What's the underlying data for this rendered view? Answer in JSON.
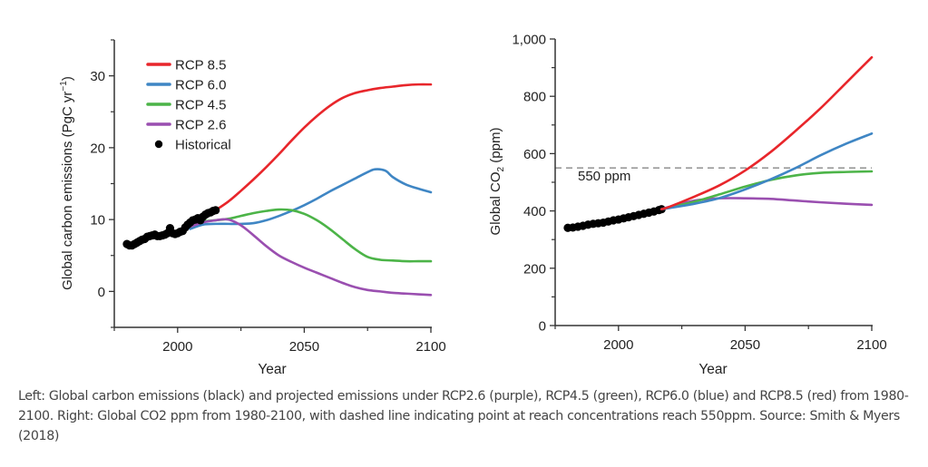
{
  "caption": "Left: Global carbon emissions (black) and projected emissions under RCP2.6 (purple), RCP4.5 (green), RCP6.0 (blue) and RCP8.5 (red) from 1980-2100. Right: Global CO2 ppm from 1980-2100, with dashed line indicating point at reach concentrations reach 550ppm. Source: Smith & Myers (2018)",
  "colors": {
    "rcp85": "#e8262b",
    "rcp60": "#3f86c4",
    "rcp45": "#4cb448",
    "rcp26": "#9a4fb0",
    "historical": "#000000",
    "reference": "#888888"
  },
  "chart_data": [
    {
      "type": "line",
      "title": "",
      "xlabel": "Year",
      "ylabel": "Global carbon emissions (PgC yr⁻¹)",
      "xlim": [
        1975,
        2100
      ],
      "ylim": [
        -5,
        35
      ],
      "xticks": [
        2000,
        2050,
        2100
      ],
      "xminor": [
        1975,
        2025,
        2075
      ],
      "yticks": [
        0,
        10,
        20,
        30
      ],
      "yminor": [
        -5,
        5,
        15,
        25,
        35
      ],
      "legend": {
        "position": "top-left",
        "entries": [
          "RCP 8.5",
          "RCP 6.0",
          "RCP 4.5",
          "RCP 2.6",
          "Historical"
        ]
      },
      "historical": {
        "name": "Historical",
        "x": [
          1980,
          1981,
          1982,
          1983,
          1984,
          1985,
          1986,
          1987,
          1988,
          1989,
          1990,
          1991,
          1992,
          1993,
          1994,
          1995,
          1996,
          1997,
          1998,
          1999,
          2000,
          2001,
          2002,
          2003,
          2004,
          2005,
          2006,
          2007,
          2008,
          2009,
          2010,
          2011,
          2012,
          2013,
          2014,
          2015
        ],
        "y": [
          6.6,
          6.4,
          6.4,
          6.6,
          6.8,
          7.0,
          7.2,
          7.3,
          7.6,
          7.7,
          7.8,
          7.9,
          7.7,
          7.7,
          7.8,
          7.9,
          8.1,
          8.8,
          8.1,
          8.0,
          8.1,
          8.3,
          8.4,
          8.9,
          9.3,
          9.6,
          9.9,
          10.0,
          10.2,
          9.9,
          10.4,
          10.7,
          10.9,
          11.0,
          11.2,
          11.3
        ]
      },
      "series": [
        {
          "name": "RCP 8.5",
          "key": "rcp85",
          "x": [
            2015,
            2020,
            2025,
            2030,
            2035,
            2040,
            2045,
            2050,
            2055,
            2060,
            2065,
            2070,
            2075,
            2080,
            2085,
            2090,
            2095,
            2100
          ],
          "y": [
            11.3,
            12.5,
            14.0,
            15.6,
            17.3,
            19.1,
            21.0,
            22.8,
            24.4,
            25.8,
            26.9,
            27.6,
            28.0,
            28.3,
            28.5,
            28.7,
            28.8,
            28.8
          ]
        },
        {
          "name": "RCP 6.0",
          "key": "rcp60",
          "x": [
            2005,
            2010,
            2015,
            2020,
            2025,
            2030,
            2035,
            2040,
            2045,
            2050,
            2055,
            2060,
            2065,
            2070,
            2075,
            2078,
            2082,
            2085,
            2090,
            2095,
            2100
          ],
          "y": [
            8.7,
            9.3,
            9.4,
            9.4,
            9.4,
            9.5,
            9.9,
            10.5,
            11.2,
            12.0,
            12.9,
            13.9,
            14.8,
            15.7,
            16.6,
            17.0,
            16.8,
            15.9,
            14.9,
            14.3,
            13.8
          ]
        },
        {
          "name": "RCP 4.5",
          "key": "rcp45",
          "x": [
            2005,
            2010,
            2015,
            2020,
            2025,
            2030,
            2035,
            2040,
            2045,
            2050,
            2055,
            2060,
            2065,
            2070,
            2075,
            2080,
            2085,
            2090,
            2095,
            2100
          ],
          "y": [
            9.0,
            9.7,
            9.9,
            10.1,
            10.5,
            10.9,
            11.2,
            11.4,
            11.3,
            10.8,
            9.9,
            8.7,
            7.3,
            5.9,
            4.8,
            4.4,
            4.3,
            4.2,
            4.2,
            4.2
          ]
        },
        {
          "name": "RCP 2.6",
          "key": "rcp26",
          "x": [
            2005,
            2010,
            2015,
            2020,
            2025,
            2030,
            2035,
            2040,
            2045,
            2050,
            2055,
            2060,
            2065,
            2070,
            2075,
            2080,
            2085,
            2090,
            2095,
            2100
          ],
          "y": [
            9.0,
            9.6,
            9.9,
            10.0,
            9.2,
            7.8,
            6.3,
            5.0,
            4.1,
            3.3,
            2.6,
            1.9,
            1.2,
            0.6,
            0.2,
            0.0,
            -0.2,
            -0.3,
            -0.4,
            -0.5
          ]
        }
      ]
    },
    {
      "type": "line",
      "title": "",
      "xlabel": "Year",
      "ylabel": "Global CO₂ (ppm)",
      "xlim": [
        1975,
        2100
      ],
      "ylim": [
        0,
        1000
      ],
      "xticks": [
        2000,
        2050,
        2100
      ],
      "xminor": [
        1975,
        2025,
        2075
      ],
      "yticks": [
        0,
        200,
        400,
        600,
        800,
        1000
      ],
      "ytick_labels": [
        "0",
        "200",
        "400",
        "600",
        "800",
        "1,000"
      ],
      "yminor": [
        100,
        300,
        500,
        700,
        900
      ],
      "reference_line": {
        "y": 550,
        "label": "550 ppm",
        "style": "dashed"
      },
      "historical": {
        "name": "Historical",
        "x": [
          1980,
          1982,
          1984,
          1986,
          1988,
          1990,
          1992,
          1994,
          1996,
          1998,
          2000,
          2002,
          2004,
          2006,
          2008,
          2010,
          2012,
          2014,
          2016,
          2017
        ],
        "y": [
          341,
          342,
          345,
          348,
          352,
          355,
          357,
          359,
          363,
          367,
          370,
          374,
          378,
          382,
          386,
          390,
          394,
          398,
          403,
          406
        ]
      },
      "series": [
        {
          "name": "RCP 8.5",
          "key": "rcp85",
          "x": [
            2017,
            2020,
            2030,
            2040,
            2050,
            2060,
            2070,
            2080,
            2090,
            2100
          ],
          "y": [
            406,
            414,
            450,
            490,
            541,
            605,
            680,
            760,
            848,
            936
          ]
        },
        {
          "name": "RCP 6.0",
          "key": "rcp60",
          "x": [
            2017,
            2020,
            2030,
            2040,
            2050,
            2060,
            2070,
            2080,
            2090,
            2100
          ],
          "y": [
            406,
            410,
            425,
            445,
            475,
            510,
            550,
            595,
            635,
            670
          ]
        },
        {
          "name": "RCP 4.5",
          "key": "rcp45",
          "x": [
            2017,
            2020,
            2030,
            2040,
            2050,
            2060,
            2070,
            2080,
            2090,
            2100
          ],
          "y": [
            406,
            412,
            432,
            458,
            485,
            508,
            524,
            533,
            536,
            538
          ]
        },
        {
          "name": "RCP 2.6",
          "key": "rcp26",
          "x": [
            2017,
            2020,
            2030,
            2040,
            2050,
            2060,
            2070,
            2080,
            2090,
            2100
          ],
          "y": [
            406,
            414,
            436,
            444,
            444,
            442,
            436,
            430,
            425,
            421
          ]
        }
      ]
    }
  ]
}
